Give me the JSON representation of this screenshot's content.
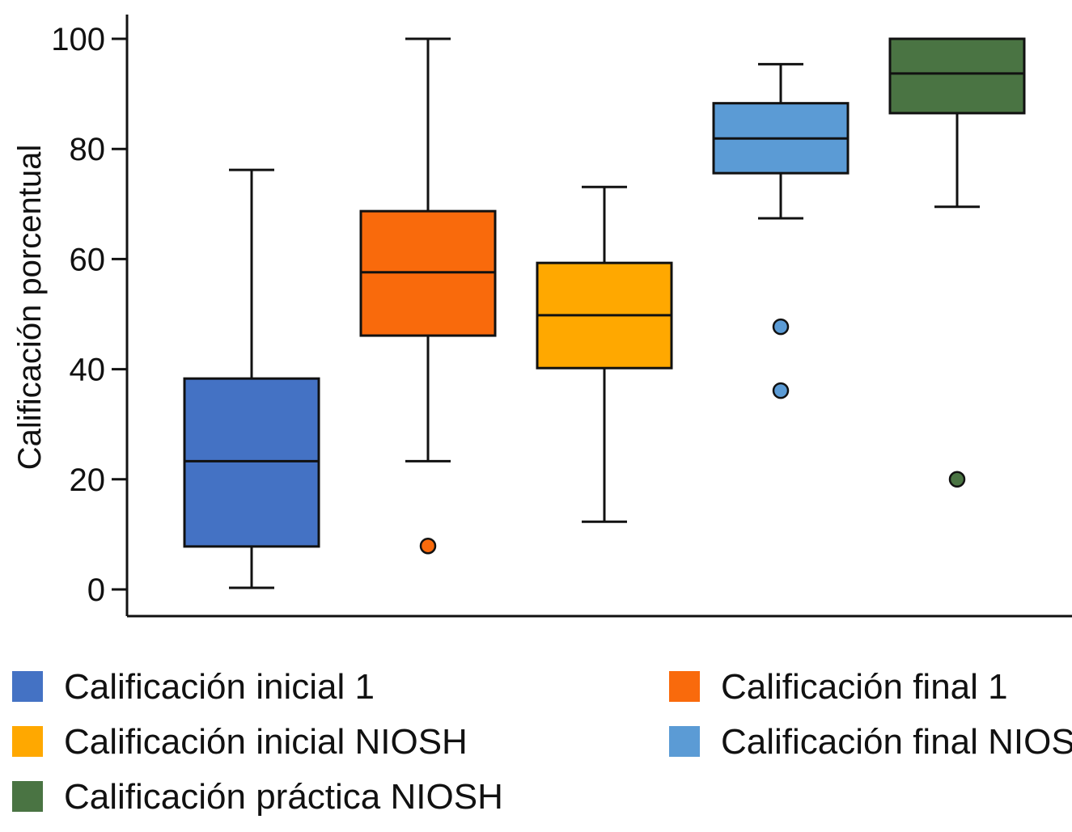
{
  "chart_data": {
    "type": "boxplot",
    "title": "",
    "xlabel": "",
    "ylabel": "Calificación porcentual",
    "ylim": [
      0,
      100
    ],
    "yticks": [
      "0",
      "20",
      "40",
      "60",
      "80",
      "100"
    ],
    "grid": false,
    "legend_position": "bottom",
    "series": [
      {
        "name": "Calificación inicial 1",
        "color": "#4472C4",
        "whisker_low": 0.3,
        "q1": 7.8,
        "median": 23.3,
        "q3": 38.3,
        "whisker_high": 76.2,
        "outliers": []
      },
      {
        "name": "Calificación final 1",
        "color": "#F96A0C",
        "whisker_low": 23.3,
        "q1": 46.1,
        "median": 57.6,
        "q3": 68.7,
        "whisker_high": 100,
        "outliers": [
          7.9
        ]
      },
      {
        "name": "Calificación inicial NIOSH",
        "color": "#FFA800",
        "whisker_low": 12.3,
        "q1": 40.2,
        "median": 49.8,
        "q3": 59.3,
        "whisker_high": 73.1,
        "outliers": []
      },
      {
        "name": "Calificación final NIOSH",
        "color": "#5B9BD5",
        "whisker_low": 67.4,
        "q1": 75.6,
        "median": 81.9,
        "q3": 88.3,
        "whisker_high": 95.4,
        "outliers": [
          47.7,
          36.1
        ]
      },
      {
        "name": "Calificación práctica NIOSH",
        "color": "#4A7443",
        "whisker_low": 69.5,
        "q1": 86.5,
        "median": 93.7,
        "q3": 100,
        "whisker_high": 100,
        "outliers": [
          20
        ]
      }
    ]
  }
}
